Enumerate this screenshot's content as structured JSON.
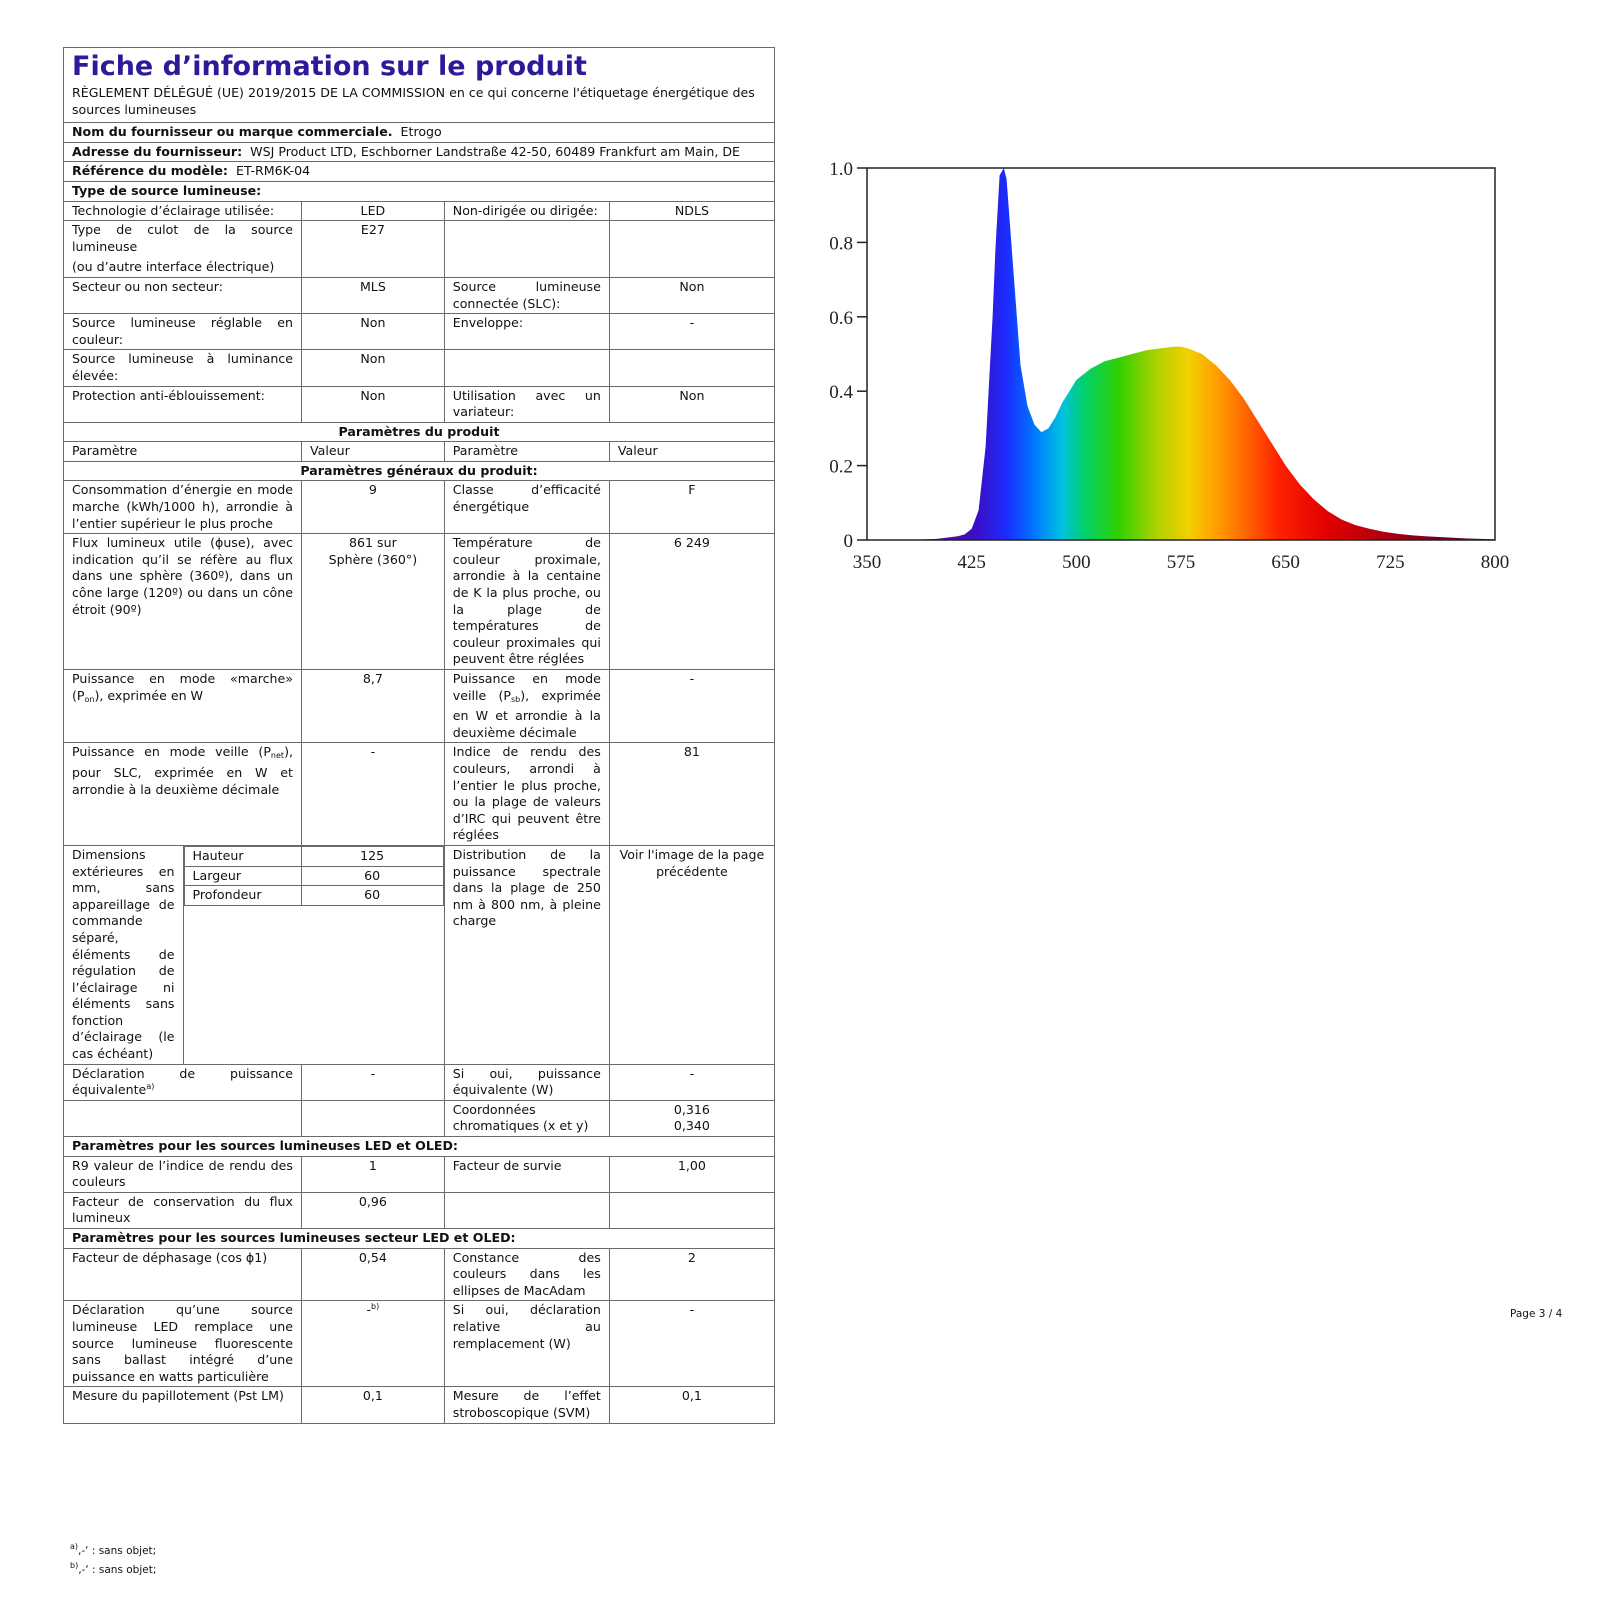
{
  "header": {
    "title": "Fiche d’information sur le produit",
    "regulation": "RÈGLEMENT DÉLÉGUÉ (UE) 2019/2015 DE LA COMMISSION en ce qui concerne l'étiquetage énergétique des sources lumineuses"
  },
  "supplier": {
    "name_label": "Nom du fournisseur ou marque commerciale.",
    "name_value": "Etrogo",
    "address_label": "Adresse du fournisseur:",
    "address_value": "WSJ Product LTD, Eschborner Landstraße 42-50, 60489 Frankfurt am Main, DE",
    "model_label": "Référence du modèle:",
    "model_value": "ET-RM6K-04",
    "type_label": "Type de source lumineuse:"
  },
  "type_rows": [
    {
      "l1": "Technologie d’éclairage utilisée:",
      "v1": "LED",
      "l2": "Non-dirigée ou dirigée:",
      "v2": "NDLS"
    },
    {
      "l1": "Type de culot de la source lumineuse",
      "l1b": "(ou d’autre interface électrique)",
      "v1": "E27",
      "l2": "",
      "v2": ""
    },
    {
      "l1": "Secteur ou non secteur:",
      "v1": "MLS",
      "l2": "Source lumineuse connectée (SLC):",
      "v2": "Non"
    },
    {
      "l1": "Source lumineuse réglable en couleur:",
      "v1": "Non",
      "l2": "Enveloppe:",
      "v2": "-"
    },
    {
      "l1": "Source lumineuse à luminance élevée:",
      "v1": "Non",
      "l2": "",
      "v2": ""
    },
    {
      "l1": "Protection anti-éblouissement:",
      "v1": "Non",
      "l2": "Utilisation avec un variateur:",
      "v2": "Non"
    }
  ],
  "params": {
    "section_title": "Paramètres du produit",
    "col_param": "Paramètre",
    "col_value": "Valeur",
    "general_title": "Paramètres généraux du produit:"
  },
  "general_rows": {
    "r1": {
      "l1": "Consommation d’énergie en mode marche (kWh/1000 h), arrondie à l’entier supérieur le plus proche",
      "v1": "9",
      "l2": "Classe d’efficacité énergétique",
      "v2": "F"
    },
    "r2": {
      "l1": "Flux lumineux utile (ɸuse), avec indication qu’il se réfère au flux dans une sphère (360º), dans un cône large (120º) ou dans un cône étroit (90º)",
      "v1a": "861 sur",
      "v1b": "Sphère (360°)",
      "l2": "Température de couleur proximale, arrondie à la centaine de K la plus proche, ou la plage de températures de couleur proximales qui peuvent être réglées",
      "v2": "6 249"
    },
    "r3": {
      "l1a": "Puissance en mode «marche» (P",
      "l1sub": "on",
      "l1b": "), exprimée en W",
      "v1": "8,7",
      "l2a": "Puissance en mode veille (P",
      "l2sub": "sb",
      "l2b": "), exprimée en W et arrondie à la deuxième décimale",
      "v2": "-"
    },
    "r4": {
      "l1a": "Puissance en mode veille (P",
      "l1sub": "net",
      "l1b": "), pour SLC, exprimée en W et arrondie à la deuxième décimale",
      "v1": "-",
      "l2": "Indice de rendu des couleurs, arrondi à l’entier le plus proche, ou la plage de valeurs d’IRC qui peuvent être réglées",
      "v2": "81"
    },
    "r5": {
      "l1": "Dimensions extérieures en mm, sans appareillage de commande séparé, éléments de régulation de l’éclairage ni éléments sans fonction d’éclairage (le cas échéant)",
      "dims": [
        {
          "label": "Hauteur",
          "value": "125"
        },
        {
          "label": "Largeur",
          "value": "60"
        },
        {
          "label": "Profondeur",
          "value": "60"
        }
      ],
      "l2": "Distribution de la puissance spectrale dans la plage de 250 nm à 800 nm, à pleine charge",
      "v2": "Voir l'image de la page précédente"
    },
    "r6": {
      "l1": "Déclaration de puissance équivalente",
      "l1sup": "a)",
      "v1": "-",
      "l2": "Si oui, puissance équivalente (W)",
      "v2": "-"
    },
    "r7": {
      "l2": "Coordonnées chromatiques (x et y)",
      "v2a": "0,316",
      "v2b": "0,340"
    }
  },
  "led_section": {
    "title": "Paramètres pour les sources lumineuses LED et OLED:",
    "r1": {
      "l1": "R9 valeur de l’indice de rendu des couleurs",
      "v1": "1",
      "l2": "Facteur de survie",
      "v2": "1,00"
    },
    "r2": {
      "l1": "Facteur de conservation du flux lumineux",
      "v1": "0,96"
    }
  },
  "mains_section": {
    "title": "Paramètres pour les sources lumineuses secteur LED et OLED:",
    "r1": {
      "l1": "Facteur de déphasage (cos ɸ1)",
      "v1": "0,54",
      "l2": "Constance des couleurs dans les ellipses de MacAdam",
      "v2": "2"
    },
    "r2": {
      "l1": "Déclaration qu’une source lumineuse LED remplace une source lumineuse fluorescente sans ballast intégré d’une puissance en watts particulière",
      "v1": "-",
      "v1sup": "b)",
      "l2": "Si oui, déclaration relative au remplacement (W)",
      "v2": "-"
    },
    "r3": {
      "l1": "Mesure du papillotement (Pst LM)",
      "v1": "0,1",
      "l2": "Mesure de l’effet stroboscopique (SVM)",
      "v2": "0,1"
    }
  },
  "footnotes": {
    "a_mark": "a)",
    "a_text": "‚-‘ : sans objet;",
    "b_mark": "b)",
    "b_text": "‚-‘ : sans objet;"
  },
  "page_number": "Page 3 / 4",
  "chart_data": {
    "type": "area",
    "x_ticks": [
      "350",
      "425",
      "500",
      "575",
      "650",
      "725",
      "800"
    ],
    "y_ticks": [
      "0",
      "0.2",
      "0.4",
      "0.6",
      "0.8",
      "1.0"
    ],
    "xlim": [
      350,
      800
    ],
    "ylim": [
      0,
      1.0
    ],
    "x": [
      350,
      380,
      400,
      415,
      420,
      425,
      430,
      435,
      440,
      442,
      445,
      448,
      450,
      455,
      460,
      465,
      470,
      475,
      480,
      485,
      490,
      495,
      500,
      510,
      520,
      530,
      540,
      550,
      560,
      570,
      575,
      580,
      590,
      600,
      610,
      620,
      630,
      640,
      650,
      660,
      670,
      680,
      690,
      700,
      710,
      720,
      730,
      740,
      750,
      760,
      770,
      780,
      790,
      800
    ],
    "y": [
      0.0,
      0.0,
      0.003,
      0.01,
      0.015,
      0.03,
      0.08,
      0.25,
      0.6,
      0.78,
      0.98,
      1.0,
      0.97,
      0.72,
      0.47,
      0.36,
      0.31,
      0.29,
      0.3,
      0.33,
      0.37,
      0.4,
      0.43,
      0.46,
      0.48,
      0.49,
      0.5,
      0.51,
      0.515,
      0.52,
      0.52,
      0.515,
      0.5,
      0.47,
      0.43,
      0.38,
      0.32,
      0.26,
      0.2,
      0.15,
      0.11,
      0.078,
      0.055,
      0.04,
      0.03,
      0.022,
      0.017,
      0.013,
      0.01,
      0.008,
      0.006,
      0.004,
      0.003,
      0.002
    ]
  }
}
